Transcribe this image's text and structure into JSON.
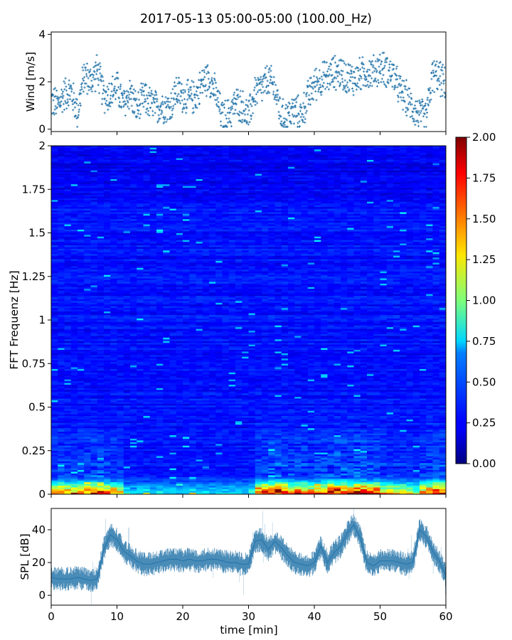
{
  "title": "2017-05-13 05:00-05:00 (100.00_Hz)",
  "chart_data": [
    {
      "type": "scatter",
      "panel": "wind",
      "ylabel": "Wind [m/s]",
      "xlabel": "",
      "xlim": [
        0,
        60
      ],
      "ylim": [
        -0.1,
        4.1
      ],
      "yticks": [
        0,
        2,
        4
      ],
      "ytick_labels": [
        "0",
        "2",
        "4"
      ],
      "marker": "+",
      "color": "#2a78ac",
      "trend_x": [
        0,
        1,
        2,
        3,
        4,
        5,
        6,
        7,
        8,
        9,
        10,
        11,
        12,
        13,
        14,
        15,
        16,
        17,
        18,
        19,
        20,
        21,
        22,
        23,
        24,
        25,
        26,
        27,
        28,
        29,
        30,
        31,
        32,
        33,
        34,
        35,
        36,
        37,
        38,
        39,
        40,
        41,
        42,
        43,
        44,
        45,
        46,
        47,
        48,
        49,
        50,
        51,
        52,
        53,
        54,
        55,
        56,
        57,
        58,
        59,
        60
      ],
      "trend_y": [
        1.2,
        1.0,
        1.5,
        1.6,
        0.7,
        2.3,
        2.0,
        2.5,
        1.4,
        1.5,
        1.8,
        1.0,
        1.6,
        0.8,
        1.3,
        1.1,
        0.9,
        1.0,
        0.9,
        1.6,
        1.4,
        1.3,
        1.4,
        2.0,
        2.2,
        1.5,
        0.5,
        0.6,
        1.1,
        1.0,
        0.5,
        1.6,
        1.7,
        2.1,
        1.7,
        0.5,
        0.6,
        0.8,
        0.6,
        1.3,
        1.9,
        2.1,
        2.2,
        2.4,
        2.4,
        2.2,
        2.1,
        2.3,
        2.4,
        2.4,
        2.6,
        2.5,
        2.3,
        1.6,
        1.3,
        0.9,
        0.6,
        0.5,
        2.3,
        2.2,
        1.8
      ],
      "spread": 0.75
    },
    {
      "type": "heatmap",
      "panel": "spectrogram",
      "ylabel": "FFT Frequenz [Hz]",
      "xlabel": "",
      "xlim": [
        0,
        60
      ],
      "ylim": [
        0,
        2
      ],
      "yticks": [
        0,
        0.25,
        0.5,
        0.75,
        1,
        1.25,
        1.5,
        1.75,
        2
      ],
      "ytick_labels": [
        "0",
        "0.25",
        "0.5",
        "0.75",
        "1",
        "1.25",
        "1.5",
        "1.75",
        "2"
      ],
      "colormap": "jet",
      "colorbar": {
        "min": 0,
        "max": 2,
        "ticks": [
          0,
          0.25,
          0.5,
          0.75,
          1,
          1.25,
          1.5,
          1.75,
          2
        ],
        "tick_labels": [
          "0.00",
          "0.25",
          "0.50",
          "0.75",
          "1.00",
          "1.25",
          "1.50",
          "1.75",
          "2.00"
        ]
      },
      "low_freq_energy_by_minute": [
        1.4,
        1.5,
        1.4,
        1.3,
        1.4,
        1.6,
        1.7,
        1.8,
        1.4,
        1.3,
        1.2,
        0.6,
        0.5,
        0.5,
        0.6,
        0.5,
        0.6,
        0.5,
        0.5,
        0.5,
        0.5,
        0.6,
        0.5,
        0.5,
        0.5,
        0.5,
        0.5,
        0.5,
        0.5,
        0.5,
        0.6,
        1.5,
        1.8,
        1.9,
        1.8,
        1.6,
        1.5,
        1.6,
        1.5,
        1.4,
        1.5,
        1.6,
        1.8,
        1.9,
        1.8,
        1.7,
        1.9,
        1.8,
        1.6,
        1.7,
        1.3,
        1.2,
        1.2,
        1.2,
        1.1,
        0.9,
        1.4,
        1.6,
        1.8,
        1.8
      ]
    },
    {
      "type": "line",
      "panel": "spl",
      "ylabel": "SPL [dB]",
      "xlabel": "time [min]",
      "xlim": [
        0,
        60
      ],
      "ylim": [
        -6,
        53
      ],
      "yticks": [
        0,
        20,
        40
      ],
      "ytick_labels": [
        "0",
        "20",
        "40"
      ],
      "xticks": [
        0,
        10,
        20,
        30,
        40,
        50,
        60
      ],
      "xtick_labels": [
        "0",
        "10",
        "20",
        "30",
        "40",
        "50",
        "60"
      ],
      "color": "#2a78ac",
      "x": [
        0,
        1,
        2,
        3,
        4,
        5,
        6,
        7,
        8,
        9,
        10,
        11,
        12,
        13,
        14,
        15,
        16,
        17,
        18,
        19,
        20,
        21,
        22,
        23,
        24,
        25,
        26,
        27,
        28,
        29,
        30,
        31,
        32,
        33,
        34,
        35,
        36,
        37,
        38,
        39,
        40,
        41,
        42,
        43,
        44,
        45,
        46,
        47,
        48,
        49,
        50,
        51,
        52,
        53,
        54,
        55,
        56,
        57,
        58,
        59,
        60
      ],
      "y": [
        11,
        10,
        10,
        10,
        11,
        10,
        9,
        10,
        28,
        37,
        34,
        27,
        24,
        21,
        19,
        19,
        20,
        21,
        22,
        22,
        21,
        22,
        21,
        21,
        22,
        22,
        21,
        20,
        20,
        19,
        19,
        33,
        34,
        28,
        33,
        29,
        24,
        20,
        19,
        18,
        20,
        30,
        20,
        26,
        30,
        38,
        43,
        35,
        20,
        18,
        21,
        21,
        21,
        20,
        19,
        20,
        40,
        36,
        27,
        21,
        12
      ],
      "spread": 5
    }
  ]
}
